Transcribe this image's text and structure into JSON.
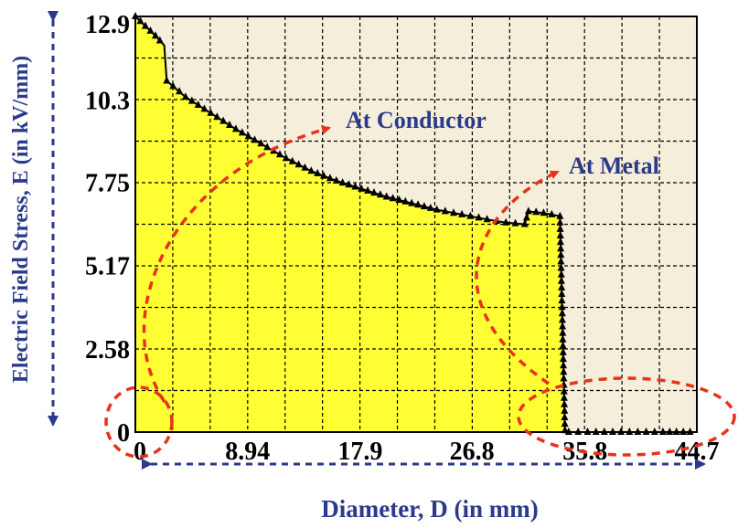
{
  "chart_data": {
    "type": "area",
    "title": "",
    "xlabel": "Diameter, D (in mm)",
    "ylabel": "Electric Field Stress, E (in kV/mm)",
    "xlim": [
      0,
      44.7
    ],
    "ylim": [
      0,
      12.9
    ],
    "x_ticks": [
      "0",
      "8.94",
      "17.9",
      "26.8",
      "35.8",
      "44.7"
    ],
    "x_tick_values": [
      0,
      8.94,
      17.9,
      26.8,
      35.8,
      44.7
    ],
    "y_ticks": [
      "0",
      "2.58",
      "5.17",
      "7.75",
      "10.3",
      "12.9"
    ],
    "y_tick_values": [
      0,
      2.58,
      5.17,
      7.75,
      10.3,
      12.9
    ],
    "grid": true,
    "x_grid_step": 2.98,
    "y_grid_step": 1.29,
    "series": [
      {
        "x": [
          0,
          0.8,
          1.6,
          2.3,
          2.5,
          4,
          6,
          8,
          10,
          12,
          14,
          16,
          18,
          20,
          22,
          24,
          26,
          28,
          29.5,
          31,
          31.3,
          32.5,
          33.8,
          34.2,
          34.5,
          36,
          38,
          40,
          42,
          44.7
        ],
        "y": [
          12.9,
          12.6,
          12.3,
          12.0,
          10.9,
          10.4,
          9.9,
          9.4,
          8.95,
          8.5,
          8.1,
          7.8,
          7.55,
          7.3,
          7.1,
          6.9,
          6.75,
          6.6,
          6.5,
          6.45,
          6.85,
          6.8,
          6.7,
          0.05,
          0,
          0,
          0,
          0,
          0,
          0
        ],
        "line_color": "#000000",
        "fill_color": "#ffff33",
        "marker": "triangle"
      }
    ],
    "annotations": [
      {
        "text": "At Conductor",
        "target": "region near D = 0"
      },
      {
        "text": "At Metal",
        "target": "region beyond D = 35.8"
      }
    ],
    "colors": {
      "plot_background": "#f5eeda",
      "gridline": "#000000",
      "annotation_arrow": "#e8331a",
      "axis_text": "#2b3a8c"
    }
  }
}
